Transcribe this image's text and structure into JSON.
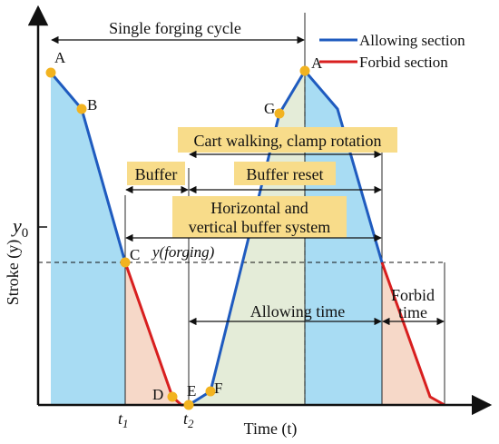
{
  "title": "Single forging cycle",
  "legend": {
    "allowing": "Allowing section",
    "forbid": "Forbid section",
    "allowing_color": "#1f5bbf",
    "forbid_color": "#d81f1f"
  },
  "axes": {
    "x_label": "Time (t)",
    "y_label": "Stroke (y)",
    "y0": "y",
    "y0_sub": "0",
    "t1": "t",
    "t1_sub": "1",
    "t2": "t",
    "t2_sub": "2"
  },
  "points": {
    "A": "A",
    "B": "B",
    "C": "C",
    "D": "D",
    "E": "E",
    "F": "F",
    "G": "G",
    "A2": "A"
  },
  "annotations": {
    "forging_level": "y(forging)",
    "buffer": "Buffer",
    "cart_walking": "Cart walking, clamp rotation",
    "buffer_reset": "Buffer reset",
    "buffer_system_line1": "Horizontal and",
    "buffer_system_line2": "vertical buffer system",
    "allowing_time": "Allowing time",
    "forbid_time_line1": "Forbid",
    "forbid_time_line2": "time"
  },
  "colors": {
    "blue_fill": "#a8dcf3",
    "pink_fill": "#f6d8c8",
    "green_fill": "#e4ecd8",
    "highlight": "#f8dc8a",
    "point": "#f2b320"
  }
}
